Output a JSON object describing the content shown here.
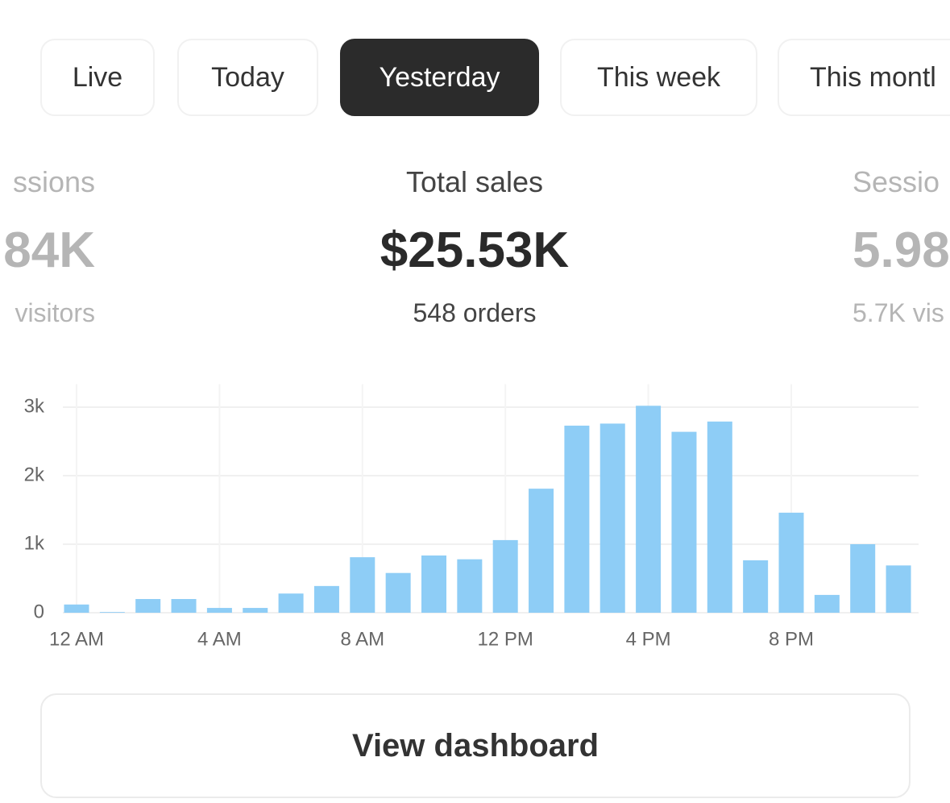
{
  "tabs": [
    "Live",
    "Today",
    "Yesterday",
    "This week",
    "This montl"
  ],
  "metrics": [
    {
      "label": "ssions",
      "value": "84K",
      "sub": "visitors"
    },
    {
      "label": "Total sales",
      "value": "$25.53K",
      "sub": "548 orders"
    },
    {
      "label": "Sessio",
      "value": "5.98",
      "sub": "5.7K vis"
    }
  ],
  "chart_data": {
    "type": "bar",
    "color": "#8ecdf6",
    "grid": true,
    "categories": [
      "12 AM",
      null,
      null,
      null,
      "4 AM",
      null,
      null,
      null,
      "8 AM",
      null,
      null,
      null,
      "12 PM",
      null,
      null,
      null,
      "4 PM",
      null,
      null,
      null,
      "8 PM",
      null,
      null,
      null
    ],
    "values": [
      120,
      10,
      200,
      200,
      70,
      70,
      280,
      390,
      810,
      580,
      835,
      780,
      1060,
      1810,
      2730,
      2760,
      3020,
      2640,
      2790,
      765,
      1460,
      260,
      1000,
      690
    ],
    "ylim": [
      0,
      3100
    ],
    "yticks": [
      {
        "value": 0,
        "label": "0"
      },
      {
        "value": 1000,
        "label": "1k"
      },
      {
        "value": 2000,
        "label": "2k"
      },
      {
        "value": 3000,
        "label": "3k"
      }
    ]
  },
  "button": "View dashboard"
}
